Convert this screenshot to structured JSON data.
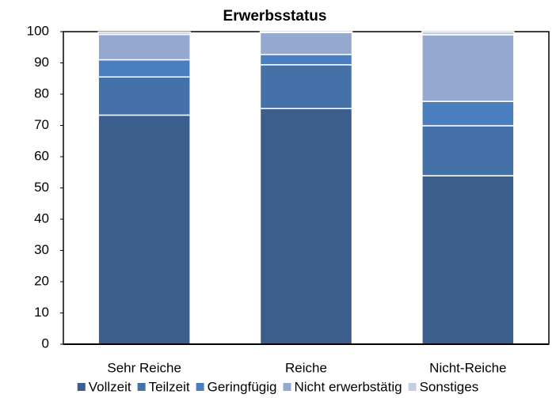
{
  "chart_data": {
    "type": "stacked_bar",
    "title": "Erwerbsstatus",
    "categories": [
      "Sehr Reiche",
      "Reiche",
      "Nicht-Reiche"
    ],
    "series": [
      {
        "name": "Vollzeit",
        "color": "#3b5e8c",
        "values": [
          73.3,
          75.4,
          53.9
        ]
      },
      {
        "name": "Teilzeit",
        "color": "#4471a7",
        "values": [
          12.2,
          14.0,
          16.0
        ]
      },
      {
        "name": "Geringfügig",
        "color": "#4a7ebf",
        "values": [
          5.5,
          3.3,
          7.8
        ]
      },
      {
        "name": "Nicht erwerbstätig",
        "color": "#94a8d0",
        "values": [
          8.1,
          7.0,
          21.3
        ]
      },
      {
        "name": "Sonstiges",
        "color": "#c3cde3",
        "values": [
          0.8,
          0.3,
          1.0
        ]
      }
    ],
    "ylim": [
      0,
      100
    ],
    "yticks": [
      0,
      10,
      20,
      30,
      40,
      50,
      60,
      70,
      80,
      90,
      100
    ],
    "legend": "bottom"
  }
}
